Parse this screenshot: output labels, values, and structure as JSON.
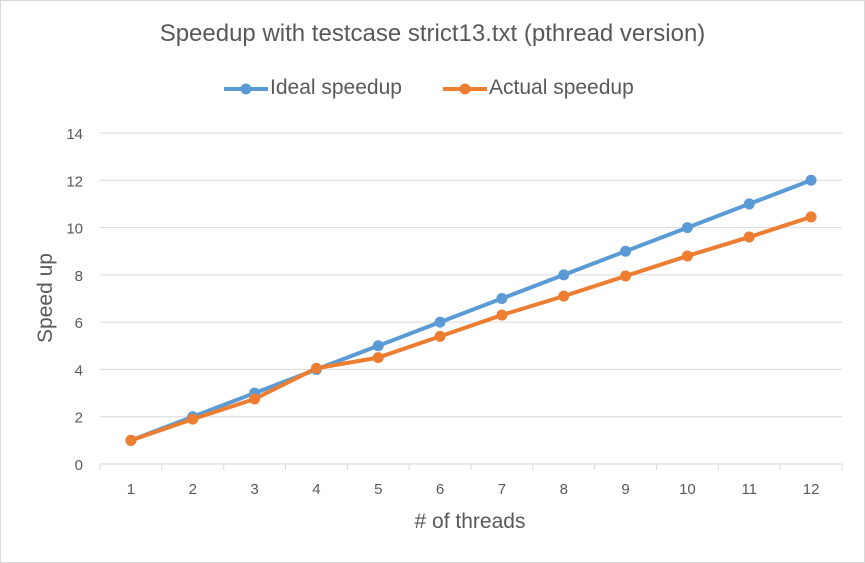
{
  "chart_data": {
    "type": "line",
    "title": "Speedup  with testcase strict13.txt (pthread version)",
    "xlabel": "# of threads",
    "ylabel": "Speed up",
    "x": [
      1,
      2,
      3,
      4,
      5,
      6,
      7,
      8,
      9,
      10,
      11,
      12
    ],
    "ylim": [
      0,
      14
    ],
    "yticks": [
      0,
      2,
      4,
      6,
      8,
      10,
      12,
      14
    ],
    "grid": true,
    "legend": "top",
    "series": [
      {
        "name": "Ideal speedup",
        "color": "#5b9bd5",
        "values": [
          1,
          2,
          3,
          4,
          5,
          6,
          7,
          8,
          9,
          10,
          11,
          12
        ]
      },
      {
        "name": "Actual speedup",
        "color": "#ed7d31",
        "values": [
          1.0,
          1.9,
          2.75,
          4.05,
          4.5,
          5.4,
          6.3,
          7.1,
          7.95,
          8.8,
          9.6,
          10.45
        ]
      }
    ]
  }
}
